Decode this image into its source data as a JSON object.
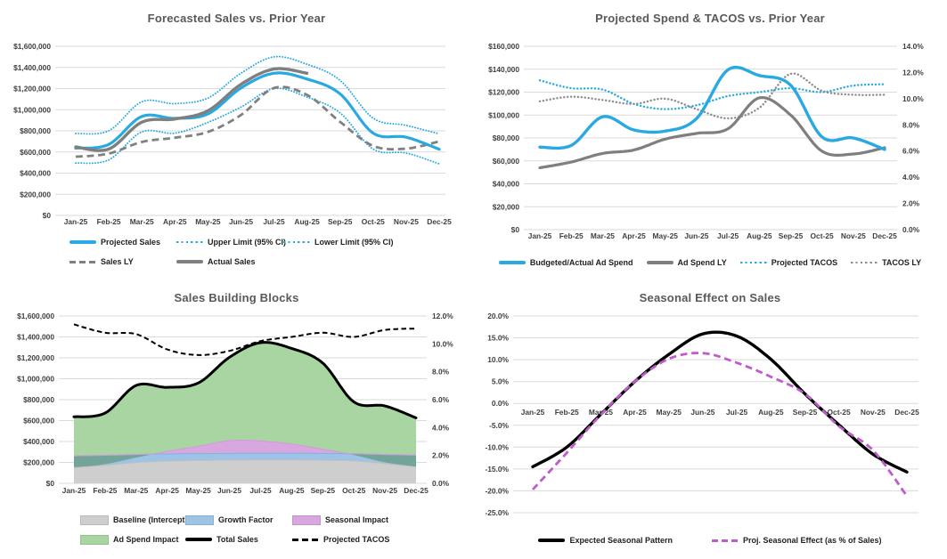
{
  "theme": {
    "background": "#FFFFFF",
    "grid": "#DADADA",
    "axis_text": "#3F3F3F",
    "title_text": "#595959",
    "legend_text": "#1F1F1F",
    "accent_blue": "#29A9E2",
    "accent_gray": "#7F7F7F",
    "accent_magenta": "#C05BCB",
    "area_gray": "#CFCECE",
    "area_blue": "#9DC3E6",
    "area_purple": "#D9A7E0",
    "area_green": "#A8D5A2",
    "area_overlap_teal": "#73A499"
  },
  "chart_data": [
    {
      "type": "line",
      "title": "Forecasted Sales vs. Prior Year",
      "categories": [
        "Jan-25",
        "Feb-25",
        "Mar-25",
        "Apr-25",
        "May-25",
        "Jun-25",
        "Jul-25",
        "Aug-25",
        "Sep-25",
        "Oct-25",
        "Nov-25",
        "Dec-25"
      ],
      "y_axis": {
        "min": 0,
        "max": 1600000,
        "step": 200000,
        "labels": [
          "$1,600,000",
          "$1,400,000",
          "$1,200,000",
          "$1,000,000",
          "$800,000",
          "$600,000",
          "$400,000",
          "$200,000",
          "$0"
        ]
      },
      "series": [
        {
          "name": "Upper Limit (95% CI)",
          "style": "dotted",
          "color": "#29A9E2",
          "width": 1.9,
          "axis": "left",
          "values": [
            775000,
            801000,
            1075000,
            1058000,
            1110000,
            1345000,
            1500000,
            1430000,
            1278000,
            920000,
            852000,
            772000
          ]
        },
        {
          "name": "Lower Limit (95% CI)",
          "style": "dotted",
          "color": "#29A9E2",
          "width": 1.9,
          "axis": "left",
          "values": [
            495000,
            525000,
            790000,
            778000,
            880000,
            1025000,
            1200000,
            1120000,
            970000,
            628000,
            590000,
            488000
          ]
        },
        {
          "name": "Sales LY",
          "style": "dashed",
          "color": "#808080",
          "width": 2.8,
          "axis": "left",
          "values": [
            555000,
            585000,
            695000,
            735000,
            790000,
            950000,
            1205000,
            1140000,
            885000,
            658000,
            632000,
            700000
          ]
        },
        {
          "name": "Projected Sales",
          "style": "solid",
          "color": "#29A9E2",
          "width": 3.2,
          "axis": "left",
          "values": [
            636000,
            672000,
            936000,
            918000,
            960000,
            1205000,
            1345000,
            1290000,
            1150000,
            779000,
            740000,
            626000
          ]
        },
        {
          "name": "Actual Sales",
          "style": "solid",
          "color": "#7F7F7F",
          "width": 3.4,
          "axis": "left",
          "values": [
            648000,
            628000,
            882000,
            912000,
            990000,
            1240000,
            1385000,
            1345000,
            null,
            null,
            null,
            null
          ]
        }
      ],
      "legend": {
        "rows": [
          [
            {
              "label": "Projected Sales",
              "swatch": "line",
              "line_style": "solid",
              "color": "#29A9E2",
              "weight": 3.5
            },
            {
              "label": "Upper Limit (95% CI)",
              "swatch": "line",
              "line_style": "dotted",
              "color": "#29A9E2",
              "weight": 2
            },
            {
              "label": "Lower Limit (95% CI)",
              "swatch": "line",
              "line_style": "dotted",
              "color": "#29A9E2",
              "weight": 2
            }
          ],
          [
            {
              "label": "Sales LY",
              "swatch": "line",
              "line_style": "dashed",
              "color": "#808080",
              "weight": 3
            },
            {
              "label": "Actual Sales",
              "swatch": "line",
              "line_style": "solid",
              "color": "#7F7F7F",
              "weight": 3.5
            }
          ]
        ]
      }
    },
    {
      "type": "line",
      "title": "Projected Spend & TACOS vs. Prior Year",
      "categories": [
        "Jan-25",
        "Feb-25",
        "Mar-25",
        "Apr-25",
        "May-25",
        "Jun-25",
        "Jul-25",
        "Aug-25",
        "Sep-25",
        "Oct-25",
        "Nov-25",
        "Dec-25"
      ],
      "y_axis": {
        "min": 0,
        "max": 160000,
        "step": 20000,
        "labels": [
          "$160,000",
          "$140,000",
          "$120,000",
          "$100,000",
          "$80,000",
          "$60,000",
          "$40,000",
          "$20,000",
          "$0"
        ]
      },
      "y_axis_right": {
        "min": 0,
        "max": 14,
        "step": 2,
        "labels": [
          "14.0%",
          "12.0%",
          "10.0%",
          "8.0%",
          "6.0%",
          "4.0%",
          "2.0%",
          "0.0%"
        ]
      },
      "series": [
        {
          "name": "Projected TACOS",
          "style": "dotted",
          "color": "#29A9E2",
          "width": 2.4,
          "axis": "right",
          "values": [
            11.4,
            10.8,
            10.7,
            9.6,
            9.2,
            9.5,
            10.2,
            10.5,
            10.8,
            10.5,
            11.0,
            11.1
          ]
        },
        {
          "name": "TACOS LY",
          "style": "dotted",
          "color": "#8C8C8C",
          "width": 2.4,
          "axis": "right",
          "values": [
            9.8,
            10.15,
            9.9,
            9.6,
            10.0,
            9.2,
            8.5,
            9.3,
            11.9,
            10.6,
            10.3,
            10.3
          ]
        },
        {
          "name": "Ad Spend LY",
          "style": "solid",
          "color": "#7F7F7F",
          "width": 3.2,
          "axis": "left",
          "values": [
            54000,
            59000,
            66500,
            69500,
            79000,
            84000,
            88000,
            115000,
            100000,
            68500,
            66000,
            71500
          ]
        },
        {
          "name": "Budgeted/Actual Ad Spend",
          "style": "solid",
          "color": "#29A9E2",
          "width": 3.4,
          "axis": "left",
          "values": [
            72000,
            73500,
            98500,
            87000,
            86000,
            97000,
            139500,
            134500,
            126000,
            81000,
            80000,
            70000
          ]
        }
      ],
      "legend": {
        "rows": [
          [
            {
              "label": "Budgeted/Actual Ad Spend",
              "swatch": "line",
              "line_style": "solid",
              "color": "#29A9E2",
              "weight": 3.5
            },
            {
              "label": "Ad Spend LY",
              "swatch": "line",
              "line_style": "solid",
              "color": "#7F7F7F",
              "weight": 3.5
            },
            {
              "label": "Projected TACOS",
              "swatch": "line",
              "line_style": "dotted",
              "color": "#29A9E2",
              "weight": 2.4
            },
            {
              "label": "TACOS LY",
              "swatch": "line",
              "line_style": "dotted",
              "color": "#8C8C8C",
              "weight": 2.4
            }
          ]
        ]
      }
    },
    {
      "type": "area-stacked",
      "title": "Sales Building Blocks",
      "categories": [
        "Jan-25",
        "Feb-25",
        "Mar-25",
        "Apr-25",
        "May-25",
        "Jun-25",
        "Jul-25",
        "Aug-25",
        "Sep-25",
        "Oct-25",
        "Nov-25",
        "Dec-25"
      ],
      "y_axis": {
        "min": 0,
        "max": 1600000,
        "step": 200000,
        "labels": [
          "$1,600,000",
          "$1,400,000",
          "$1,200,000",
          "$1,000,000",
          "$800,000",
          "$600,000",
          "$400,000",
          "$200,000",
          "$0"
        ]
      },
      "y_axis_right": {
        "min": 0,
        "max": 12,
        "step": 2,
        "labels": [
          "12.0%",
          "10.0%",
          "8.0%",
          "6.0%",
          "4.0%",
          "2.0%",
          "0.0%"
        ]
      },
      "stack": {
        "overlap_color": "#73A499",
        "components": [
          {
            "name": "Baseline (Intercept)",
            "color": "#CFCECE",
            "edge": "#C2C0C0",
            "values": [
              150000,
              172000,
              198000,
              212000,
              218000,
              221000,
              222000,
              222000,
              220000,
              214000,
              188000,
              157000
            ]
          },
          {
            "name": "Growth Factor",
            "color": "#9DC3E6",
            "edge": "#85B1DD",
            "values": [
              113000,
              96000,
              78000,
              69000,
              66000,
              65000,
              65000,
              65000,
              66000,
              69000,
              88000,
              113000
            ]
          },
          {
            "name": "Seasonal Impact",
            "color": "#D9A7E0",
            "edge": "#CF9BD8",
            "values": [
              -118000,
              -85000,
              -30000,
              25000,
              70000,
              122000,
              118000,
              88000,
              40000,
              -12000,
              -75000,
              -112000
            ]
          },
          {
            "name": "Ad Spend Impact",
            "color": "#A8D5A2",
            "edge": "#A8D5A2",
            "values": [
              491000,
              489000,
              690000,
              612000,
              606000,
              797000,
              940000,
              915000,
              824000,
              508000,
              539000,
              468000
            ]
          }
        ]
      },
      "series": [
        {
          "name": "Total Sales",
          "style": "solid",
          "color": "#000000",
          "width": 3,
          "axis": "left",
          "values": [
            636000,
            672000,
            936000,
            918000,
            960000,
            1205000,
            1345000,
            1290000,
            1150000,
            779000,
            740000,
            626000
          ]
        },
        {
          "name": "Projected TACOS",
          "style": "dashed",
          "color": "#000000",
          "width": 2,
          "axis": "right",
          "values": [
            11.4,
            10.8,
            10.7,
            9.6,
            9.2,
            9.5,
            10.2,
            10.5,
            10.8,
            10.5,
            11.0,
            11.1
          ]
        }
      ],
      "legend": {
        "rows": [
          [
            {
              "label": "Baseline (Intercept)",
              "swatch": "box",
              "color": "#CFCECE"
            },
            {
              "label": "Growth Factor",
              "swatch": "box",
              "color": "#9DC3E6"
            },
            {
              "label": "Seasonal Impact",
              "swatch": "box",
              "color": "#D9A7E0"
            }
          ],
          [
            {
              "label": "Ad Spend Impact",
              "swatch": "box",
              "color": "#A8D5A2"
            },
            {
              "label": "Total Sales",
              "swatch": "line",
              "line_style": "solid",
              "color": "#000000",
              "weight": 3.5
            },
            {
              "label": "Projected TACOS",
              "swatch": "line",
              "line_style": "dashed",
              "color": "#000000",
              "weight": 2.5
            }
          ]
        ]
      }
    },
    {
      "type": "line",
      "title": "Seasonal Effect on Sales",
      "categories": [
        "Jan-25",
        "Feb-25",
        "Mar-25",
        "Apr-25",
        "May-25",
        "Jun-25",
        "Jul-25",
        "Aug-25",
        "Sep-25",
        "Oct-25",
        "Nov-25",
        "Dec-25"
      ],
      "y_axis": {
        "min": -25,
        "max": 20,
        "step": 5,
        "labels": [
          "20.0%",
          "15.0%",
          "10.0%",
          "5.0%",
          "0.0%",
          "-5.0%",
          "-10.0%",
          "-15.0%",
          "-20.0%",
          "-25.0%"
        ]
      },
      "x_labels_inside": true,
      "series": [
        {
          "name": "Expected Seasonal Pattern",
          "style": "solid",
          "color": "#000000",
          "width": 3.4,
          "axis": "left",
          "values": [
            -14.5,
            -10.0,
            -2.5,
            5.0,
            11.2,
            15.9,
            15.4,
            10.1,
            2.2,
            -4.9,
            -11.6,
            -15.7
          ]
        },
        {
          "name": "Proj. Seasonal Effect (as % of  Sales)",
          "style": "dashed",
          "color": "#C05BCB",
          "width": 2.8,
          "axis": "left",
          "values": [
            -19.7,
            -11.3,
            -2.6,
            5.0,
            10.2,
            11.5,
            9.3,
            6.1,
            2.2,
            -5.2,
            -10.7,
            -21.2
          ]
        }
      ],
      "legend": {
        "rows": [
          [
            {
              "label": "Expected Seasonal Pattern",
              "swatch": "line",
              "line_style": "solid",
              "color": "#000000",
              "weight": 3.5
            },
            {
              "label": "Proj. Seasonal Effect (as % of  Sales)",
              "swatch": "line",
              "line_style": "dashed",
              "color": "#C05BCB",
              "weight": 2.8
            }
          ]
        ]
      }
    }
  ]
}
